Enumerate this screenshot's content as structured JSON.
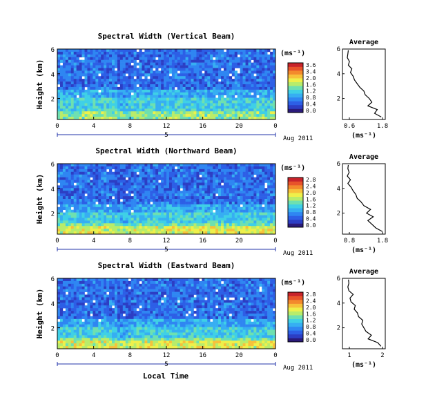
{
  "figure": {
    "xlabel": "Local Time"
  },
  "colormap": [
    "#2a1a7a",
    "#2c3ec4",
    "#2d5fe6",
    "#2f86f2",
    "#36aef2",
    "#3fd0e6",
    "#6ee0b0",
    "#b8ec6a",
    "#eef04a",
    "#f7c13a",
    "#f38a2c",
    "#e8532a",
    "#c8232a"
  ],
  "chart_data": [
    {
      "type": "heatmap",
      "title": "Spectral Width (Vertical Beam)",
      "ylabel": "Height (km)",
      "units": "(ms⁻¹)",
      "x_ticks": [
        "0",
        "4",
        "8",
        "12",
        "16",
        "20",
        "0"
      ],
      "y_ticks": [
        "2",
        "4",
        "6"
      ],
      "date_small": "5",
      "date_label": "Aug 2011",
      "colorbar_ticks": [
        "3.6",
        "3.4",
        "2.0",
        "1.6",
        "1.2",
        "0.8",
        "0.4",
        "0.0"
      ],
      "value_range": [
        0.0,
        3.6
      ],
      "height_range_km": [
        0.3,
        6.0
      ],
      "time_range_h": [
        0,
        24
      ],
      "avg": {
        "title": "Average",
        "xticks": [
          "0.6",
          "1.8"
        ],
        "xlabel": "(ms⁻¹)",
        "yticks": [
          "2",
          "4",
          "6"
        ],
        "xlim": [
          0.4,
          2.0
        ],
        "profile_height_km": [
          0.5,
          0.8,
          1.1,
          1.4,
          1.7,
          2.0,
          2.3,
          2.6,
          2.9,
          3.2,
          3.5,
          3.8,
          4.1,
          4.4,
          4.7,
          5.0,
          5.3,
          5.6,
          5.9
        ],
        "profile_value": [
          1.85,
          1.6,
          1.7,
          1.35,
          1.5,
          1.4,
          1.25,
          1.2,
          1.05,
          0.95,
          0.85,
          0.8,
          0.7,
          0.75,
          0.62,
          0.66,
          0.58,
          0.6,
          0.62
        ]
      }
    },
    {
      "type": "heatmap",
      "title": "Spectral Width (Northward Beam)",
      "ylabel": "Height (km)",
      "units": "(ms⁻¹)",
      "x_ticks": [
        "0",
        "4",
        "8",
        "12",
        "16",
        "20",
        "0"
      ],
      "y_ticks": [
        "2",
        "4",
        "6"
      ],
      "date_small": "5",
      "date_label": "Aug 2011",
      "colorbar_ticks": [
        "2.8",
        "2.4",
        "2.0",
        "1.6",
        "1.2",
        "0.8",
        "0.4",
        "0.0"
      ],
      "value_range": [
        0.0,
        2.8
      ],
      "height_range_km": [
        0.3,
        6.0
      ],
      "time_range_h": [
        0,
        24
      ],
      "avg": {
        "title": "Average",
        "xticks": [
          "0.8",
          "1.8"
        ],
        "xlabel": "(ms⁻¹)",
        "yticks": [
          "2",
          "4",
          "6"
        ],
        "xlim": [
          0.4,
          2.0
        ],
        "profile_height_km": [
          0.5,
          0.8,
          1.1,
          1.4,
          1.7,
          2.0,
          2.3,
          2.6,
          2.9,
          3.2,
          3.5,
          3.8,
          4.1,
          4.4,
          4.7,
          5.0,
          5.3,
          5.6,
          5.9
        ],
        "profile_value": [
          1.9,
          1.65,
          1.5,
          1.35,
          1.55,
          1.3,
          1.45,
          1.2,
          1.1,
          0.95,
          0.9,
          0.8,
          0.72,
          0.6,
          0.7,
          0.58,
          0.65,
          0.6,
          0.62
        ]
      }
    },
    {
      "type": "heatmap",
      "title": "Spectral Width (Eastward Beam)",
      "ylabel": "Height (km)",
      "units": "(ms⁻¹)",
      "x_ticks": [
        "0",
        "4",
        "8",
        "12",
        "16",
        "20",
        "0"
      ],
      "y_ticks": [
        "2",
        "4",
        "6"
      ],
      "date_small": "5",
      "date_label": "Aug 2011",
      "colorbar_ticks": [
        "2.8",
        "2.4",
        "2.0",
        "1.6",
        "1.2",
        "0.8",
        "0.4",
        "0.0"
      ],
      "value_range": [
        0.0,
        2.8
      ],
      "height_range_km": [
        0.3,
        6.0
      ],
      "time_range_h": [
        0,
        24
      ],
      "avg": {
        "title": "Average",
        "xticks": [
          "1",
          "2"
        ],
        "xlabel": "(ms⁻¹)",
        "yticks": [
          "2",
          "4",
          "6"
        ],
        "xlim": [
          0.4,
          2.4
        ],
        "profile_height_km": [
          0.5,
          0.8,
          1.1,
          1.4,
          1.7,
          2.0,
          2.3,
          2.6,
          2.9,
          3.2,
          3.5,
          3.8,
          4.1,
          4.4,
          4.7,
          5.0,
          5.3,
          5.6,
          5.9
        ],
        "profile_value": [
          2.2,
          2.05,
          1.6,
          1.75,
          1.5,
          1.4,
          1.3,
          1.35,
          1.15,
          1.1,
          0.95,
          1.0,
          0.8,
          0.75,
          0.9,
          0.7,
          0.65,
          0.7,
          0.68
        ]
      }
    }
  ]
}
